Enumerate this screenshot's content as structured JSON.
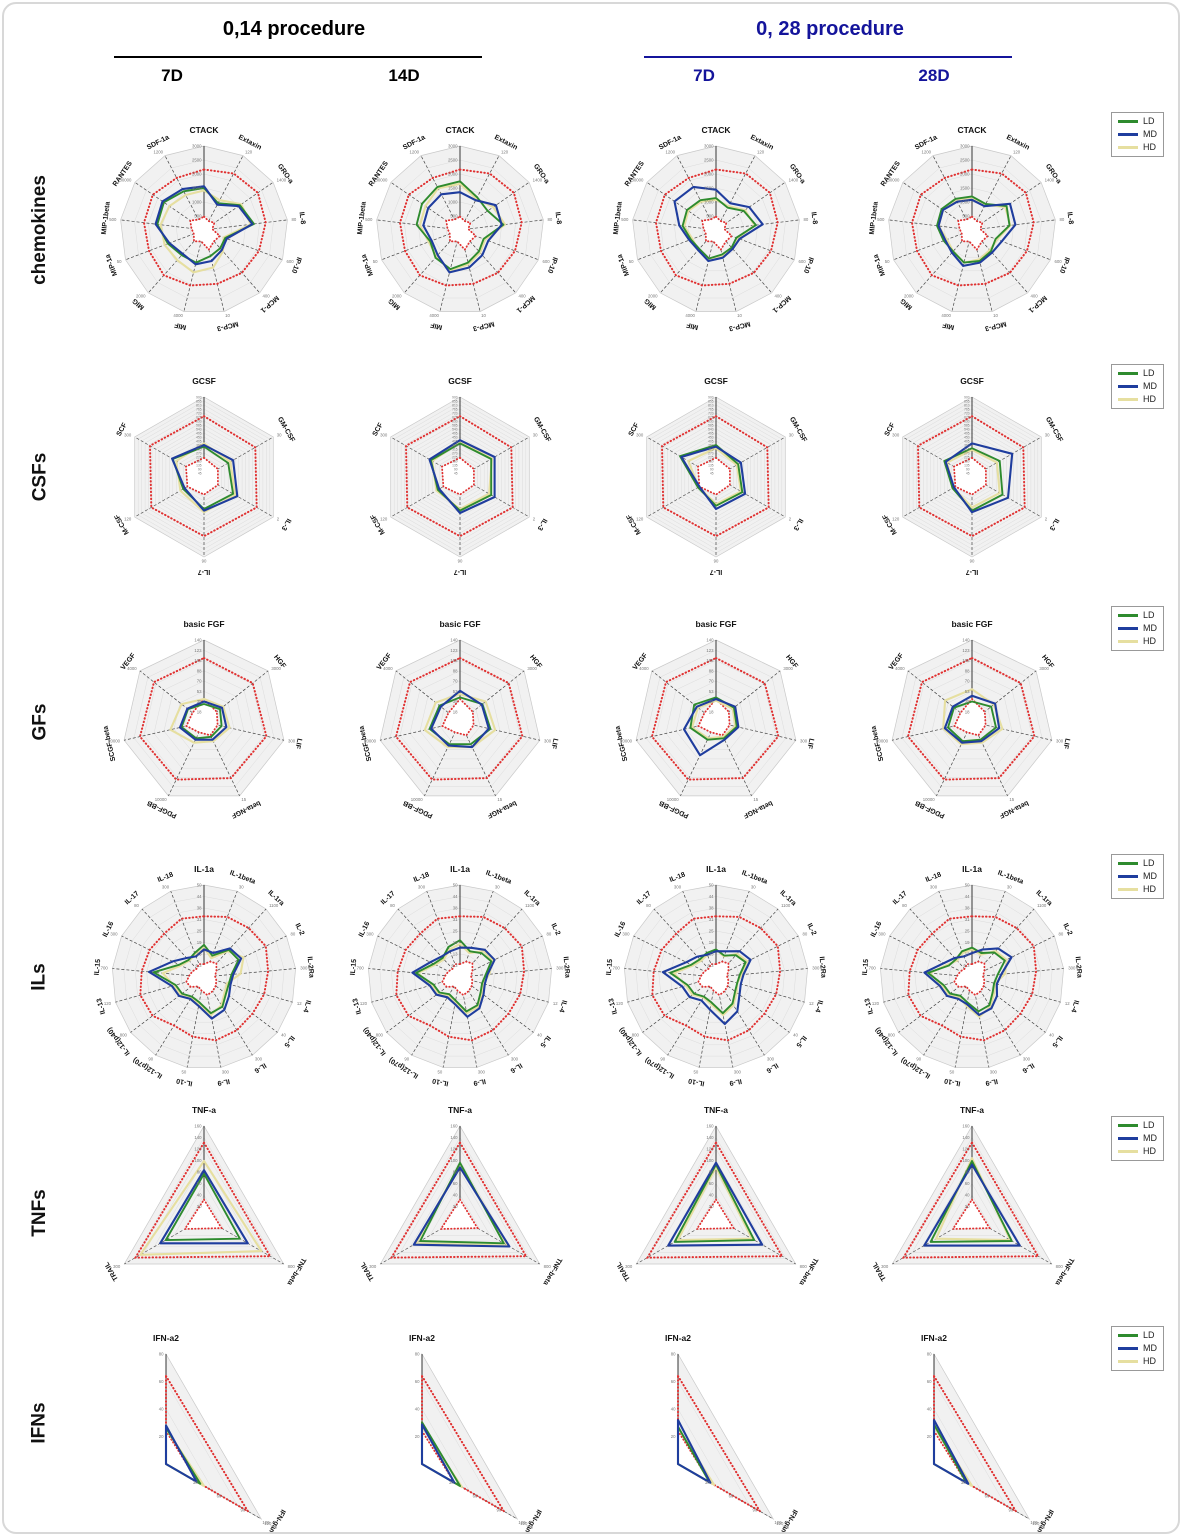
{
  "header": {
    "groups": [
      {
        "title": "0,14 procedure",
        "color": "#000000",
        "sub": [
          "7D",
          "14D"
        ]
      },
      {
        "title": "0, 28 procedure",
        "color": "#14149B",
        "sub": [
          "7D",
          "28D"
        ]
      }
    ]
  },
  "legend": {
    "items": [
      {
        "label": "LD",
        "color": "#2E8B2E"
      },
      {
        "label": "MD",
        "color": "#1F3D9E"
      },
      {
        "label": "HD",
        "color": "#E6DFA0"
      }
    ]
  },
  "colors": {
    "reference_dotted": "#E03131",
    "grid": "#DCDCDC",
    "panel_fill": "#F1F1F1",
    "header_blue": "#14149B"
  },
  "chart_data": {
    "type": "radar",
    "units": "series values are percent of each axis maximum (0-100), estimated from plot",
    "reference_note": "red dotted polygons = upper and lower reference bounds",
    "columns": [
      "0,14 procedure 7D",
      "0,14 procedure 14D",
      "0, 28 procedure 7D",
      "0, 28 procedure 28D"
    ],
    "rows": [
      {
        "label": "chemokines",
        "categories": [
          "CTACK",
          "Extaxin",
          "GRO-a",
          "IL-8",
          "IP-10",
          "MCP-1",
          "MCP-3",
          "MIF",
          "MIG",
          "MIP-1a",
          "MIP-1beta",
          "RANTES",
          "SDF-1a"
        ],
        "axis_max": [
          3000,
          120,
          1400,
          80,
          600,
          400,
          10,
          4000,
          2000,
          50,
          500,
          30000,
          1200
        ],
        "ref_high": [
          72,
          76,
          78,
          74,
          70,
          68,
          66,
          68,
          72,
          70,
          72,
          74,
          70
        ],
        "ref_low": [
          16,
          12,
          15,
          10,
          20,
          18,
          24,
          14,
          18,
          13,
          15,
          20,
          14
        ],
        "panels": [
          {
            "column": "0,14 7D",
            "LD": [
              50,
              36,
              52,
              60,
              27,
              29,
              32,
              40,
              40,
              46,
              56,
              58,
              52
            ],
            "MD": [
              52,
              34,
              50,
              58,
              29,
              32,
              38,
              42,
              38,
              44,
              58,
              60,
              55
            ],
            "HD": [
              47,
              40,
              54,
              56,
              25,
              34,
              46,
              52,
              48,
              50,
              52,
              50,
              47
            ]
          },
          {
            "column": "0,14 14D",
            "LD": [
              58,
              44,
              40,
              52,
              30,
              34,
              40,
              48,
              44,
              38,
              52,
              55,
              58
            ],
            "MD": [
              45,
              40,
              52,
              50,
              36,
              40,
              46,
              52,
              40,
              36,
              44,
              46,
              48
            ],
            "HD": [
              55,
              42,
              48,
              54,
              32,
              36,
              42,
              50,
              42,
              40,
              48,
              50,
              56
            ]
          },
          {
            "column": "0,28 7D",
            "LD": [
              38,
              30,
              40,
              48,
              26,
              28,
              30,
              35,
              30,
              32,
              40,
              42,
              40
            ],
            "MD": [
              48,
              36,
              48,
              56,
              30,
              30,
              34,
              38,
              32,
              34,
              44,
              60,
              58
            ],
            "HD": [
              36,
              32,
              42,
              46,
              28,
              30,
              32,
              36,
              32,
              30,
              38,
              40,
              38
            ]
          },
          {
            "column": "0,28 28D",
            "LD": [
              40,
              35,
              50,
              45,
              30,
              34,
              38,
              40,
              34,
              36,
              42,
              44,
              42
            ],
            "MD": [
              36,
              32,
              55,
              52,
              38,
              36,
              40,
              44,
              36,
              34,
              40,
              42,
              38
            ],
            "HD": [
              38,
              34,
              48,
              46,
              32,
              32,
              36,
              40,
              34,
              32,
              40,
              42,
              40
            ]
          }
        ]
      },
      {
        "label": "CSFs",
        "categories": [
          "GCSF",
          "GM-CSF",
          "IL-3",
          "IL-7",
          "M-CSF",
          "SCF"
        ],
        "axis_max": [
          900,
          30,
          2,
          90,
          120,
          300
        ],
        "ref_high": [
          76,
          74,
          76,
          74,
          76,
          78
        ],
        "ref_low": [
          24,
          20,
          20,
          22,
          24,
          26
        ],
        "panels": [
          {
            "column": "0,14 7D",
            "LD": [
              38,
              35,
              42,
              40,
              30,
              45
            ],
            "MD": [
              40,
              42,
              48,
              42,
              28,
              46
            ],
            "HD": [
              42,
              38,
              45,
              44,
              34,
              40
            ]
          },
          {
            "column": "0,14 14D",
            "LD": [
              42,
              45,
              45,
              42,
              32,
              42
            ],
            "MD": [
              46,
              50,
              50,
              45,
              30,
              44
            ],
            "HD": [
              44,
              46,
              42,
              40,
              34,
              40
            ]
          },
          {
            "column": "0,28 7D",
            "LD": [
              40,
              32,
              38,
              36,
              26,
              52
            ],
            "MD": [
              38,
              36,
              42,
              40,
              24,
              50
            ],
            "HD": [
              36,
              30,
              36,
              34,
              25,
              40
            ]
          },
          {
            "column": "0,28 28D",
            "LD": [
              36,
              40,
              44,
              42,
              28,
              40
            ],
            "MD": [
              42,
              58,
              52,
              44,
              26,
              38
            ],
            "HD": [
              34,
              36,
              40,
              38,
              27,
              36
            ]
          }
        ]
      },
      {
        "label": "GFs",
        "categories": [
          "basic FGF",
          "HGF",
          "LIF",
          "beta-NGF",
          "PDGF-BB",
          "SCGF-beta",
          "VEGF"
        ],
        "axis_max": [
          140,
          3000,
          300,
          15,
          10000,
          20000,
          4000
        ],
        "ref_high": [
          78,
          76,
          78,
          76,
          78,
          80,
          78
        ],
        "ref_low": [
          28,
          20,
          17,
          18,
          14,
          22,
          18
        ],
        "panels": [
          {
            "column": "0,14 7D",
            "LD": [
              22,
              25,
              22,
              20,
              22,
              28,
              25
            ],
            "MD": [
              25,
              28,
              28,
              24,
              24,
              30,
              26
            ],
            "HD": [
              28,
              30,
              32,
              26,
              28,
              42,
              35
            ]
          },
          {
            "column": "0,14 14D",
            "LD": [
              30,
              35,
              38,
              30,
              30,
              38,
              32
            ],
            "MD": [
              38,
              34,
              36,
              34,
              32,
              36,
              30
            ],
            "HD": [
              34,
              40,
              44,
              34,
              34,
              44,
              38
            ]
          },
          {
            "column": "0,28 7D",
            "LD": [
              30,
              28,
              26,
              22,
              24,
              32,
              34
            ],
            "MD": [
              28,
              30,
              28,
              24,
              45,
              40,
              30
            ],
            "HD": [
              26,
              26,
              24,
              20,
              22,
              30,
              28
            ]
          },
          {
            "column": "0,28 28D",
            "LD": [
              25,
              30,
              30,
              24,
              26,
              30,
              28
            ],
            "MD": [
              32,
              36,
              34,
              26,
              28,
              34,
              30
            ],
            "HD": [
              40,
              34,
              38,
              28,
              30,
              36,
              42
            ]
          }
        ]
      },
      {
        "label": "ILs",
        "categories": [
          "IL-1a",
          "IL-1beta",
          "IL-1ra",
          "IL-2",
          "IL-2Ra",
          "IL-4",
          "IL-5",
          "IL-6",
          "IL-9",
          "IL-10",
          "IL-12(p70)",
          "IL-12(p40)",
          "IL-13",
          "IL-15",
          "IL-16",
          "IL-17",
          "IL-18"
        ],
        "axis_max": [
          50,
          30,
          1100,
          80,
          300,
          12,
          40,
          300,
          300,
          50,
          90,
          800,
          120,
          700,
          300,
          80,
          300
        ],
        "ref_high": [
          66,
          70,
          72,
          75,
          70,
          68,
          66,
          68,
          70,
          66,
          62,
          70,
          72,
          68,
          66,
          64,
          68
        ],
        "ref_low": [
          14,
          18,
          20,
          15,
          12,
          14,
          16,
          18,
          20,
          15,
          12,
          18,
          20,
          16,
          14,
          12,
          15
        ],
        "panels": [
          {
            "column": "0,14 7D",
            "LD": [
              35,
              25,
              40,
              42,
              30,
              28,
              30,
              38,
              40,
              28,
              25,
              30,
              32,
              55,
              30,
              25,
              28
            ],
            "MD": [
              30,
              28,
              42,
              45,
              32,
              30,
              34,
              42,
              46,
              32,
              28,
              34,
              36,
              60,
              38,
              28,
              24
            ],
            "HD": [
              32,
              22,
              38,
              48,
              40,
              26,
              28,
              36,
              42,
              30,
              26,
              32,
              34,
              45,
              28,
              24,
              26
            ]
          },
          {
            "column": "0,14 14D",
            "LD": [
              40,
              30,
              35,
              38,
              28,
              25,
              28,
              36,
              38,
              26,
              22,
              28,
              30,
              48,
              32,
              28,
              35
            ],
            "MD": [
              32,
              34,
              40,
              42,
              30,
              28,
              32,
              40,
              44,
              30,
              26,
              32,
              34,
              52,
              36,
              30,
              30
            ],
            "HD": [
              36,
              28,
              38,
              40,
              32,
              26,
              30,
              38,
              40,
              28,
              24,
              30,
              32,
              46,
              30,
              26,
              32
            ]
          },
          {
            "column": "0,28 7D",
            "LD": [
              30,
              25,
              32,
              36,
              26,
              24,
              26,
              34,
              40,
              28,
              25,
              30,
              32,
              50,
              30,
              26,
              28
            ],
            "MD": [
              28,
              30,
              38,
              42,
              30,
              28,
              32,
              44,
              52,
              36,
              30,
              36,
              38,
              58,
              36,
              30,
              26
            ],
            "HD": [
              30,
              24,
              34,
              38,
              28,
              24,
              28,
              36,
              42,
              30,
              26,
              32,
              34,
              46,
              28,
              24,
              26
            ]
          },
          {
            "column": "0,28 28D",
            "LD": [
              32,
              28,
              36,
              40,
              28,
              25,
              28,
              36,
              38,
              28,
              24,
              30,
              32,
              48,
              28,
              26,
              30
            ],
            "MD": [
              26,
              32,
              42,
              48,
              32,
              28,
              34,
              40,
              42,
              30,
              28,
              34,
              36,
              52,
              34,
              28,
              24
            ],
            "HD": [
              30,
              26,
              38,
              42,
              36,
              26,
              30,
              38,
              44,
              32,
              26,
              32,
              34,
              46,
              30,
              24,
              28
            ]
          }
        ]
      },
      {
        "label": "TNFs",
        "categories": [
          "TNF-a",
          "TNF-beta",
          "TRAIL"
        ],
        "axis_max": [
          160,
          800,
          300
        ],
        "ref_high": [
          82,
          83,
          86
        ],
        "ref_low": [
          20,
          22,
          24
        ],
        "panels": [
          {
            "column": "0,14 7D",
            "LD": [
              48,
              45,
              48
            ],
            "MD": [
              52,
              55,
              55
            ],
            "HD": [
              62,
              72,
              80
            ]
          },
          {
            "column": "0,14 14D",
            "LD": [
              60,
              55,
              50
            ],
            "MD": [
              55,
              62,
              58
            ],
            "HD": [
              58,
              60,
              55
            ]
          },
          {
            "column": "0,28 7D",
            "LD": [
              58,
              48,
              52
            ],
            "MD": [
              60,
              58,
              60
            ],
            "HD": [
              55,
              45,
              48
            ]
          },
          {
            "column": "0,28 28D",
            "LD": [
              62,
              50,
              52
            ],
            "MD": [
              58,
              60,
              60
            ],
            "HD": [
              65,
              48,
              45
            ]
          }
        ]
      },
      {
        "label": "IFNs",
        "categories": [
          "IFN-a2",
          "IFN-gamma"
        ],
        "axis_max": [
          80,
          120
        ],
        "ref_high": [
          80,
          86
        ],
        "ref_low": [
          30,
          34
        ],
        "panels": [
          {
            "column": "0,14 7D",
            "LD": [
              33,
              36
            ],
            "MD": [
              35,
              32
            ],
            "HD": [
              32,
              40
            ]
          },
          {
            "column": "0,14 14D",
            "LD": [
              38,
              40
            ],
            "MD": [
              36,
              34
            ],
            "HD": [
              34,
              42
            ]
          },
          {
            "column": "0,28 7D",
            "LD": [
              34,
              33
            ],
            "MD": [
              40,
              34
            ],
            "HD": [
              33,
              38
            ]
          },
          {
            "column": "0,28 28D",
            "LD": [
              36,
              34
            ],
            "MD": [
              40,
              36
            ],
            "HD": [
              34,
              40
            ]
          }
        ]
      }
    ]
  }
}
